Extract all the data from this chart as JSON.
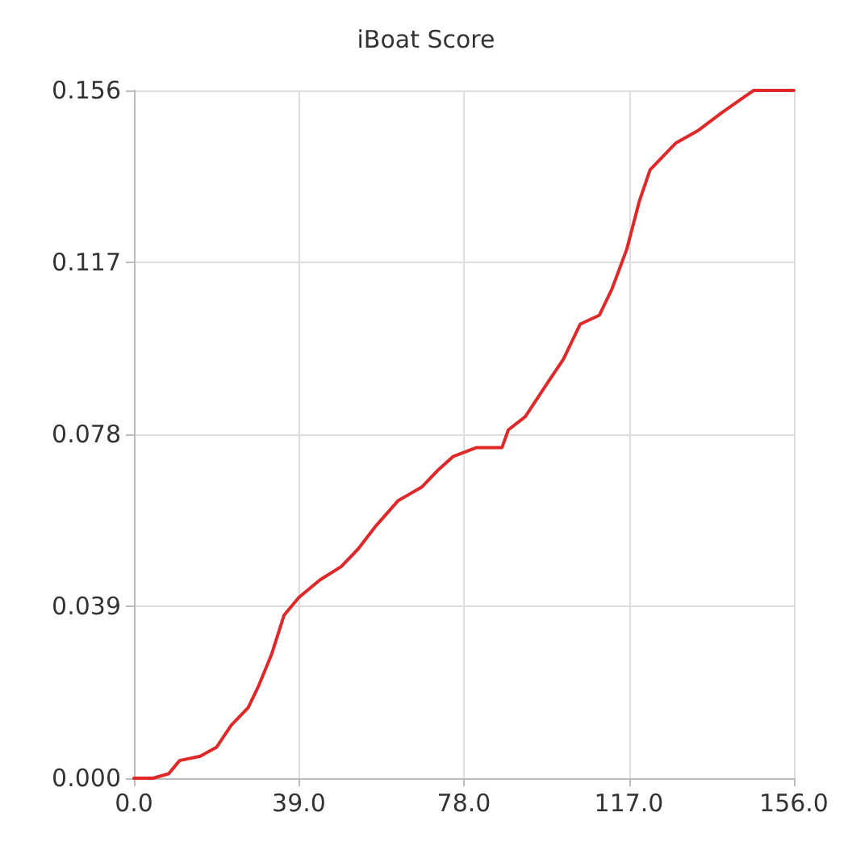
{
  "chart_data": {
    "type": "line",
    "title": "iBoat Score",
    "x": [
      0,
      4.5,
      8.2,
      10.8,
      15.7,
      19.5,
      23,
      27,
      29.5,
      32.5,
      35.5,
      39,
      44,
      49,
      53,
      57,
      62.5,
      68,
      72,
      75.5,
      81,
      87,
      88.5,
      92.5,
      98,
      101.5,
      105.5,
      110,
      113,
      116.5,
      119.5,
      122,
      128,
      133.5,
      139,
      145,
      146.5,
      156
    ],
    "series": [
      {
        "color": "#e02828",
        "values": [
          0,
          0,
          0.001,
          0.004,
          0.005,
          0.007,
          0.012,
          0.016,
          0.021,
          0.028,
          0.037,
          0.041,
          0.045,
          0.048,
          0.052,
          0.057,
          0.063,
          0.066,
          0.07,
          0.073,
          0.075,
          0.075,
          0.079,
          0.082,
          0.09,
          0.095,
          0.103,
          0.105,
          0.111,
          0.12,
          0.131,
          0.138,
          0.144,
          0.147,
          0.151,
          0.155,
          0.156,
          0.156
        ]
      }
    ],
    "xlim": [
      0,
      156
    ],
    "xticks": [
      {
        "value": 0,
        "label": "0.0"
      },
      {
        "value": 39,
        "label": "39.0"
      },
      {
        "value": 78,
        "label": "78.0"
      },
      {
        "value": 117,
        "label": "117.0"
      },
      {
        "value": 156,
        "label": "156.0"
      }
    ],
    "ylim": [
      0,
      0.156
    ],
    "yticks": [
      {
        "value": 0,
        "label": "0.000"
      },
      0.039,
      0.078,
      0.117,
      0.156
    ],
    "grid": true,
    "marker": "none",
    "line_style": "solid"
  }
}
